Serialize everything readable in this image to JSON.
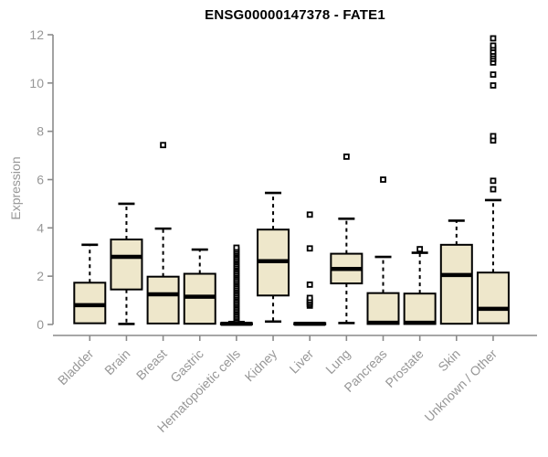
{
  "chart_data": {
    "type": "boxplot",
    "title": "ENSG00000147378 - FATE1",
    "ylabel": "Expression",
    "xlabel": "",
    "ylim": [
      0,
      12
    ],
    "yticks": [
      0,
      2,
      4,
      6,
      8,
      10,
      12
    ],
    "grid": false,
    "legend": "none",
    "categories": [
      "Bladder",
      "Brain",
      "Breast",
      "Gastric",
      "Hematopoietic cells",
      "Kidney",
      "Liver",
      "Lung",
      "Pancreas",
      "Prostate",
      "Skin",
      "Unknown / Other"
    ],
    "series": [
      {
        "name": "Bladder",
        "low": 0.05,
        "q1": 0.05,
        "median": 0.8,
        "q3": 1.73,
        "high": 3.3,
        "outliers": []
      },
      {
        "name": "Brain",
        "low": 0.02,
        "q1": 1.45,
        "median": 2.8,
        "q3": 3.52,
        "high": 5.0,
        "outliers": []
      },
      {
        "name": "Breast",
        "low": 0.04,
        "q1": 0.04,
        "median": 1.25,
        "q3": 1.98,
        "high": 3.97,
        "outliers": [
          7.43
        ]
      },
      {
        "name": "Gastric",
        "low": 0.03,
        "q1": 0.03,
        "median": 1.15,
        "q3": 2.1,
        "high": 3.1,
        "outliers": []
      },
      {
        "name": "Hematopoietic cells",
        "low": 0.0,
        "q1": 0.0,
        "median": 0.03,
        "q3": 0.06,
        "high": 0.1,
        "outliers": [
          0.12,
          0.18,
          0.25,
          0.32,
          0.4,
          0.48,
          0.55,
          0.62,
          0.7,
          0.78,
          0.85,
          0.92,
          1.0,
          1.08,
          1.15,
          1.22,
          1.3,
          1.38,
          1.45,
          1.52,
          1.6,
          1.68,
          1.75,
          1.82,
          1.9,
          1.98,
          2.05,
          2.12,
          2.2,
          2.28,
          2.35,
          2.42,
          2.5,
          2.58,
          2.65,
          2.72,
          2.8,
          2.88,
          2.95,
          3.02,
          3.1,
          3.18
        ]
      },
      {
        "name": "Kidney",
        "low": 0.12,
        "q1": 1.2,
        "median": 2.62,
        "q3": 3.93,
        "high": 5.45,
        "outliers": []
      },
      {
        "name": "Liver",
        "low": 0.0,
        "q1": 0.0,
        "median": 0.03,
        "q3": 0.06,
        "high": 0.08,
        "outliers": [
          0.78,
          0.85,
          0.92,
          1.0,
          1.1,
          1.65,
          3.15,
          4.55
        ]
      },
      {
        "name": "Lung",
        "low": 0.06,
        "q1": 1.7,
        "median": 2.3,
        "q3": 2.93,
        "high": 4.38,
        "outliers": [
          6.95
        ]
      },
      {
        "name": "Pancreas",
        "low": 0.02,
        "q1": 0.02,
        "median": 0.07,
        "q3": 1.3,
        "high": 2.8,
        "outliers": [
          6.0
        ]
      },
      {
        "name": "Prostate",
        "low": 0.02,
        "q1": 0.02,
        "median": 0.07,
        "q3": 1.28,
        "high": 2.97,
        "outliers": [
          3.12
        ]
      },
      {
        "name": "Skin",
        "low": 0.03,
        "q1": 0.03,
        "median": 2.05,
        "q3": 3.3,
        "high": 4.3,
        "outliers": []
      },
      {
        "name": "Unknown / Other",
        "low": 0.05,
        "q1": 0.05,
        "median": 0.65,
        "q3": 2.15,
        "high": 5.15,
        "outliers": [
          5.6,
          5.95,
          7.62,
          7.8,
          9.9,
          10.35,
          10.85,
          11.0,
          11.1,
          11.2,
          11.3,
          11.45,
          11.55,
          11.85
        ]
      }
    ],
    "colors": {
      "box_fill": "#EEE7CB",
      "box_stroke": "#000000",
      "median": "#000000",
      "whisker": "#000000",
      "outlier": "#000000",
      "axis": "#8a8a8a",
      "tick_label": "#979797",
      "title": "#000000",
      "background": "#ffffff"
    }
  }
}
